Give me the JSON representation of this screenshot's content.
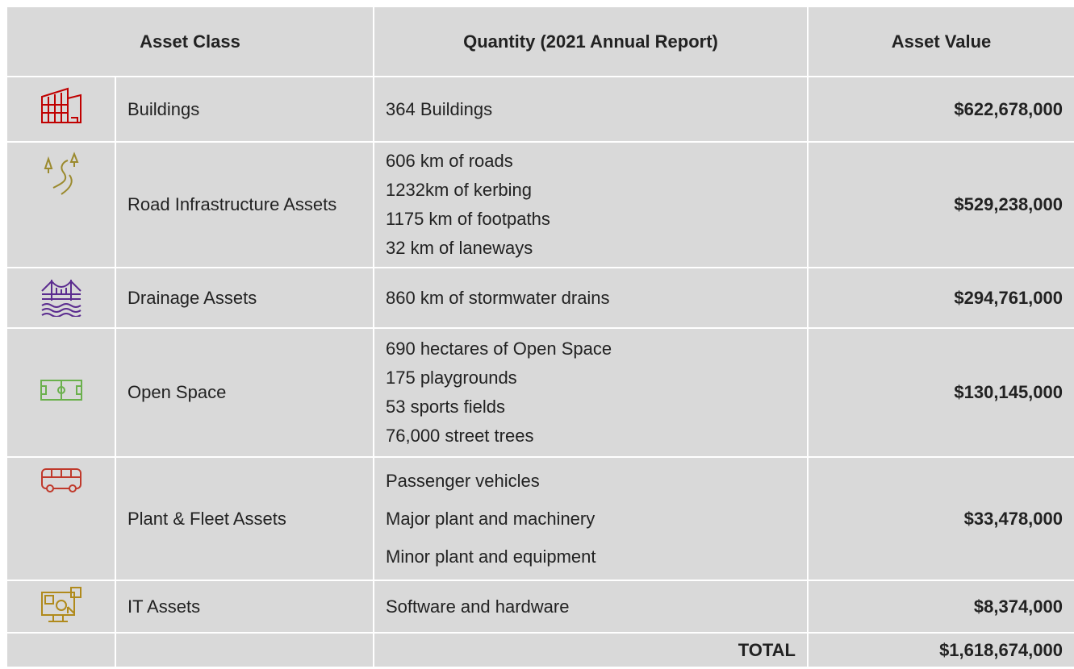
{
  "header": {
    "columns": [
      "Asset Class",
      "Quantity (2021 Annual Report)",
      "Asset Value"
    ]
  },
  "rows": [
    {
      "class": "Buildings",
      "quantity": [
        "364 Buildings"
      ],
      "value": "$622,678,000"
    },
    {
      "class": "Road Infrastructure Assets",
      "quantity": [
        "606 km of roads",
        "1232km of kerbing",
        "1175 km of footpaths",
        "32 km of laneways"
      ],
      "value": "$529,238,000"
    },
    {
      "class": "Drainage Assets",
      "quantity": [
        "860 km of stormwater drains"
      ],
      "value": "$294,761,000"
    },
    {
      "class": "Open Space",
      "quantity": [
        "690 hectares of Open Space",
        "175 playgrounds",
        "53 sports fields",
        "76,000 street trees"
      ],
      "value": "$130,145,000"
    },
    {
      "class": "Plant & Fleet Assets",
      "quantity": [
        "Passenger vehicles",
        "Major plant and machinery",
        "Minor plant and equipment"
      ],
      "value": "$33,478,000"
    },
    {
      "class": "IT Assets",
      "quantity": [
        "Software and hardware"
      ],
      "value": "$8,374,000"
    }
  ],
  "total": {
    "label": "TOTAL",
    "value": "$1,618,674,000"
  }
}
